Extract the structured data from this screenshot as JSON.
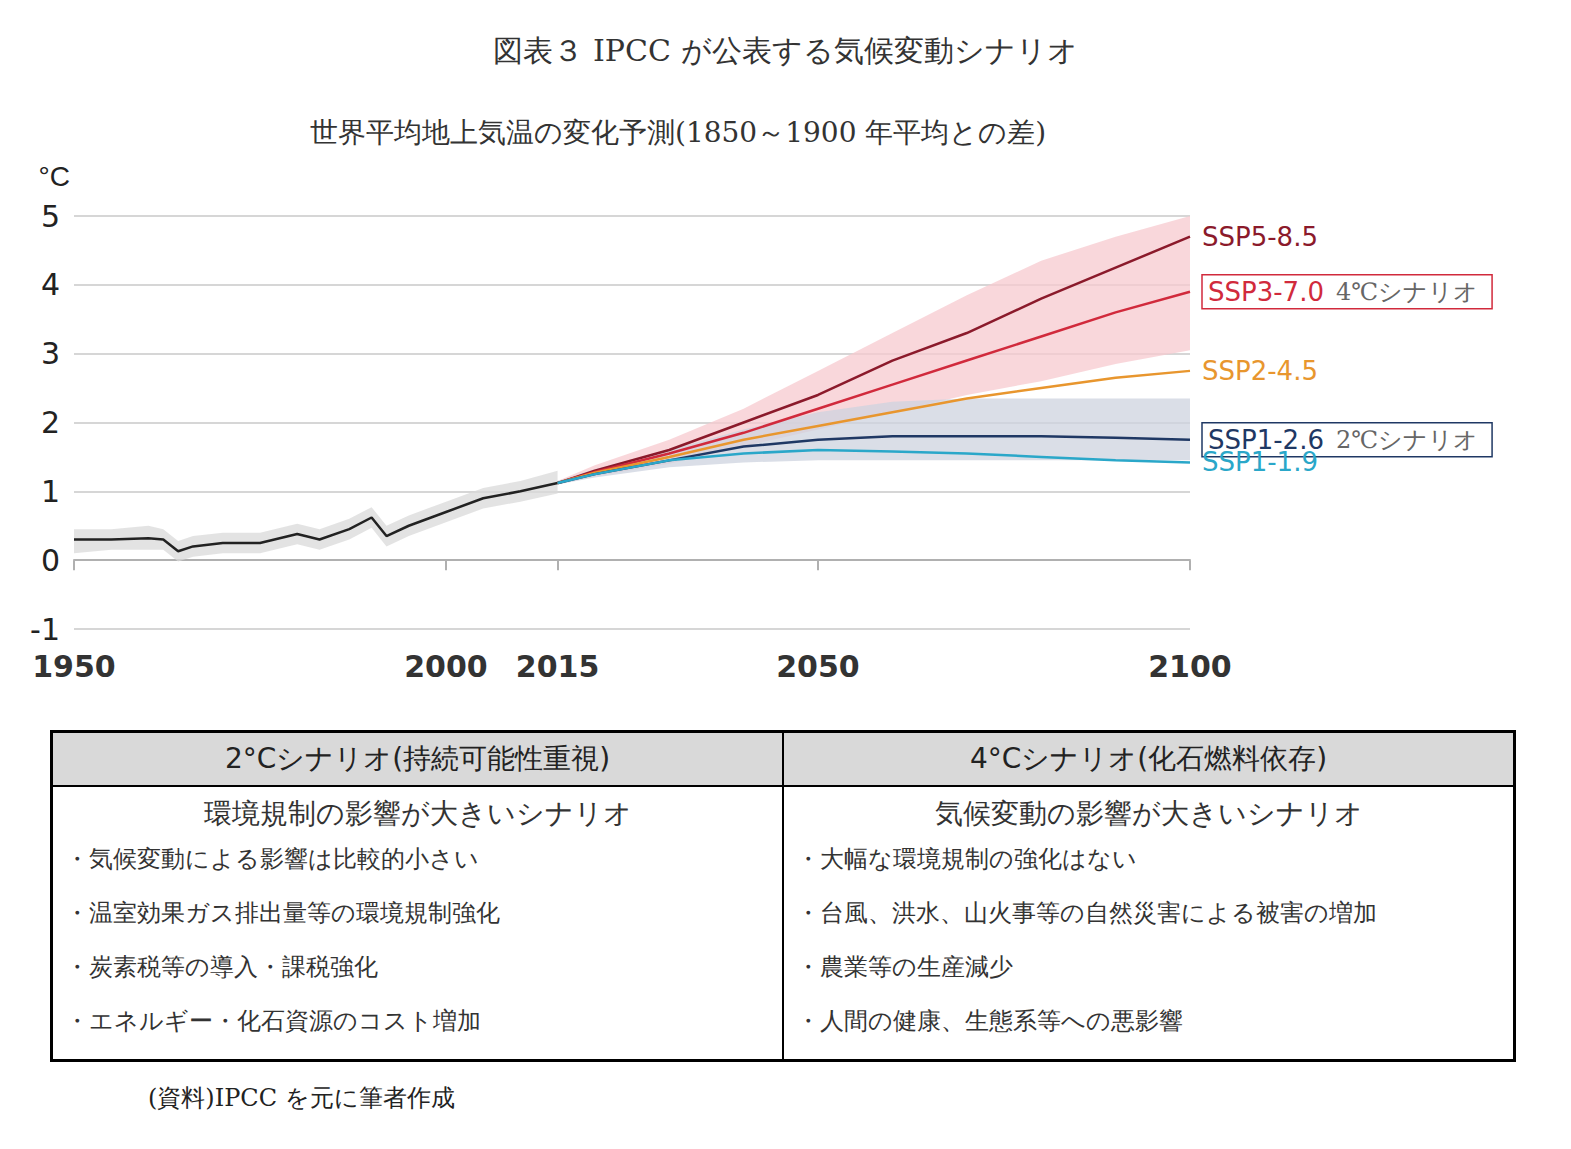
{
  "chart_data": {
    "type": "line",
    "title": "図表３ IPCC が公表する気候変動シナリオ",
    "subtitle": "世界平均地上気温の変化予測(1850～1900 年平均との差)",
    "y_label": "°C",
    "x": [
      1950,
      1955,
      1960,
      1962,
      1964,
      1966,
      1970,
      1975,
      1980,
      1983,
      1987,
      1990,
      1992,
      1995,
      2000,
      2005,
      2010,
      2015,
      2020,
      2030,
      2040,
      2050,
      2060,
      2070,
      2080,
      2090,
      2100
    ],
    "xlim": [
      1950,
      2100
    ],
    "xticks": [
      1950,
      2000,
      2015,
      2050,
      2100
    ],
    "ylim": [
      -1,
      5
    ],
    "yticks": [
      -1,
      0,
      1,
      2,
      3,
      4,
      5
    ],
    "grid": true,
    "bands": [
      {
        "color": "#d9d9d9",
        "lower": [
          0.1,
          0.15,
          0.15,
          0.15,
          -0.02,
          0.05,
          0.1,
          0.1,
          0.23,
          0.15,
          0.3,
          0.47,
          0.2,
          0.35,
          0.55,
          0.75,
          0.85,
          0.97,
          null,
          null,
          null,
          null,
          null,
          null,
          null,
          null,
          null
        ],
        "upper": [
          0.45,
          0.45,
          0.5,
          0.45,
          0.28,
          0.35,
          0.4,
          0.4,
          0.53,
          0.45,
          0.6,
          0.77,
          0.5,
          0.65,
          0.85,
          1.05,
          1.15,
          1.3,
          null,
          null,
          null,
          null,
          null,
          null,
          null,
          null,
          null
        ]
      },
      {
        "color": "#f7c9cf",
        "lower": [
          null,
          null,
          null,
          null,
          null,
          null,
          null,
          null,
          null,
          null,
          null,
          null,
          null,
          null,
          null,
          null,
          null,
          1.1,
          1.22,
          1.4,
          1.65,
          1.9,
          2.15,
          2.4,
          2.6,
          2.85,
          3.05
        ],
        "upper": [
          null,
          null,
          null,
          null,
          null,
          null,
          null,
          null,
          null,
          null,
          null,
          null,
          null,
          null,
          null,
          null,
          null,
          1.15,
          1.38,
          1.75,
          2.2,
          2.75,
          3.3,
          3.85,
          4.35,
          4.7,
          5.0
        ]
      },
      {
        "color": "#cdd3df",
        "lower": [
          null,
          null,
          null,
          null,
          null,
          null,
          null,
          null,
          null,
          null,
          null,
          null,
          null,
          null,
          null,
          null,
          null,
          1.1,
          1.2,
          1.35,
          1.42,
          1.45,
          1.45,
          1.45,
          1.45,
          1.45,
          1.45
        ],
        "upper": [
          null,
          null,
          null,
          null,
          null,
          null,
          null,
          null,
          null,
          null,
          null,
          null,
          null,
          null,
          null,
          null,
          null,
          1.15,
          1.32,
          1.6,
          1.9,
          2.15,
          2.3,
          2.35,
          2.35,
          2.35,
          2.35
        ]
      }
    ],
    "series": [
      {
        "color": "#222222",
        "values": [
          0.3,
          0.3,
          0.32,
          0.3,
          0.13,
          0.2,
          0.25,
          0.25,
          0.38,
          0.3,
          0.45,
          0.62,
          0.35,
          0.5,
          0.7,
          0.9,
          1.0,
          1.12,
          null,
          null,
          null,
          null,
          null,
          null,
          null,
          null,
          null
        ]
      },
      {
        "name": "SSP5-8.5",
        "color": "#8b1a2b",
        "values": [
          null,
          null,
          null,
          null,
          null,
          null,
          null,
          null,
          null,
          null,
          null,
          null,
          null,
          null,
          null,
          null,
          null,
          1.12,
          1.3,
          1.6,
          2.0,
          2.4,
          2.9,
          3.3,
          3.8,
          4.25,
          4.7
        ]
      },
      {
        "name": "SSP3-7.0",
        "color": "#d12a3c",
        "annotation": "4℃シナリオ",
        "values": [
          null,
          null,
          null,
          null,
          null,
          null,
          null,
          null,
          null,
          null,
          null,
          null,
          null,
          null,
          null,
          null,
          null,
          1.12,
          1.28,
          1.55,
          1.85,
          2.2,
          2.55,
          2.9,
          3.25,
          3.6,
          3.9
        ]
      },
      {
        "name": "SSP2-4.5",
        "color": "#e8962e",
        "values": [
          null,
          null,
          null,
          null,
          null,
          null,
          null,
          null,
          null,
          null,
          null,
          null,
          null,
          null,
          null,
          null,
          null,
          1.12,
          1.27,
          1.5,
          1.75,
          1.95,
          2.15,
          2.35,
          2.5,
          2.65,
          2.75
        ]
      },
      {
        "name": "SSP1-2.6",
        "color": "#1f3864",
        "annotation": "2℃シナリオ",
        "values": [
          null,
          null,
          null,
          null,
          null,
          null,
          null,
          null,
          null,
          null,
          null,
          null,
          null,
          null,
          null,
          null,
          null,
          1.12,
          1.25,
          1.45,
          1.65,
          1.75,
          1.8,
          1.8,
          1.8,
          1.78,
          1.75
        ]
      },
      {
        "name": "SSP1-1.9",
        "color": "#2aa7c9",
        "values": [
          null,
          null,
          null,
          null,
          null,
          null,
          null,
          null,
          null,
          null,
          null,
          null,
          null,
          null,
          null,
          null,
          null,
          1.12,
          1.25,
          1.45,
          1.55,
          1.6,
          1.58,
          1.55,
          1.5,
          1.45,
          1.42
        ]
      }
    ]
  },
  "table": {
    "columns": [
      {
        "header": "2°Cシナリオ(持続可能性重視)",
        "subheader": "環境規制の影響が大きいシナリオ",
        "items": [
          "・気候変動による影響は比較的小さい",
          "・温室効果ガス排出量等の環境規制強化",
          "・炭素税等の導入・課税強化",
          "・エネルギー・化石資源のコスト増加"
        ]
      },
      {
        "header": "4°Cシナリオ(化石燃料依存)",
        "subheader": "気候変動の影響が大きいシナリオ",
        "items": [
          "・大幅な環境規制の強化はない",
          "・台風、洪水、山火事等の自然災害による被害の増加",
          "・農業等の生産減少",
          "・人間の健康、生態系等への悪影響"
        ]
      }
    ]
  },
  "source": "(資料)IPCC を元に筆者作成"
}
